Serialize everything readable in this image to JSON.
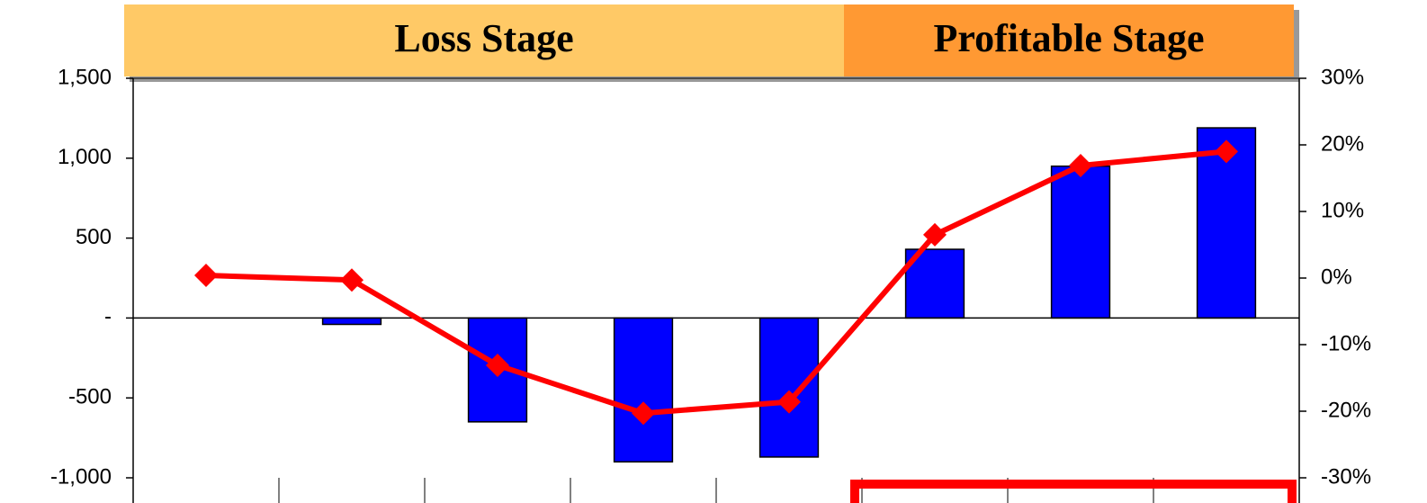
{
  "chart_data": {
    "type": "combo",
    "categories": [
      null,
      null,
      null,
      null,
      null,
      null,
      null,
      null
    ],
    "annotations": [
      {
        "text": "Loss Stage",
        "color": "#FFC966"
      },
      {
        "text": "Profitable Stage",
        "color": "#FF9933"
      }
    ],
    "series": [
      {
        "type": "bar",
        "color": "#0000FF",
        "values": [
          0,
          -40,
          -650,
          -900,
          -870,
          430,
          950,
          1190
        ]
      },
      {
        "type": "line",
        "color": "#FF0000",
        "axis": "y2",
        "values": [
          0.4,
          -0.3,
          -13.1,
          -20.3,
          -18.6,
          6.5,
          16.9,
          19
        ]
      }
    ],
    "ylim": [
      -1000,
      1500
    ],
    "yticks": [
      {
        "value": -1000,
        "label": "-1,000"
      },
      -500,
      {
        "value": 0,
        "label": "-"
      },
      500,
      {
        "value": 1000,
        "label": "1,000"
      },
      {
        "value": 1500,
        "label": "1,500"
      }
    ],
    "y2lim": [
      -30,
      30
    ],
    "y2ticks": [
      {
        "value": -30,
        "label": "-30%"
      },
      {
        "value": -20,
        "label": "-20%"
      },
      {
        "value": -10,
        "label": "-10%"
      },
      {
        "value": 0,
        "label": "0%"
      },
      {
        "value": 10,
        "label": "10%"
      },
      {
        "value": 20,
        "label": "20%"
      },
      {
        "value": 30,
        "label": "30%"
      }
    ]
  }
}
